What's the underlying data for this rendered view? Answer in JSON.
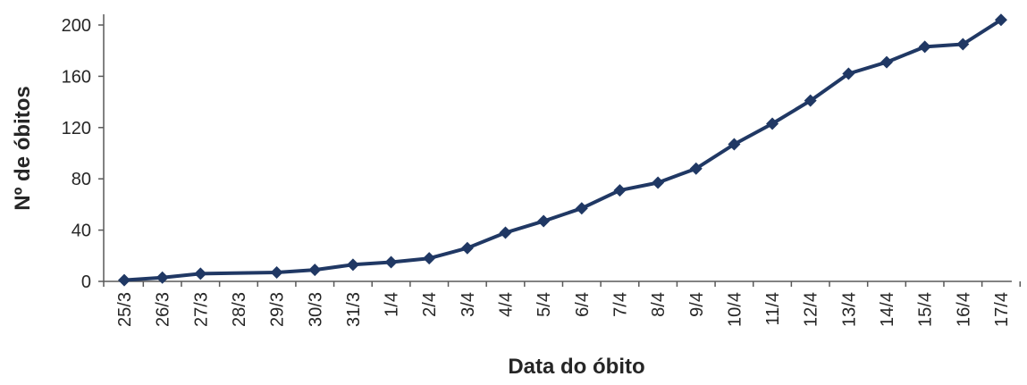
{
  "chart_data": {
    "type": "line",
    "title": "",
    "xlabel": "Data do óbito",
    "ylabel": "Nº de óbitos",
    "categories": [
      "25/3",
      "26/3",
      "27/3",
      "28/3",
      "29/3",
      "30/3",
      "31/3",
      "1/4",
      "2/4",
      "3/4",
      "4/4",
      "5/4",
      "6/4",
      "7/4",
      "8/4",
      "9/4",
      "10/4",
      "11/4",
      "12/4",
      "13/4",
      "14/4",
      "15/4",
      "16/4",
      "17/4"
    ],
    "series": [
      {
        "values": [
          1,
          3,
          6,
          null,
          7,
          9,
          13,
          15,
          18,
          26,
          38,
          47,
          57,
          71,
          77,
          88,
          107,
          123,
          141,
          162,
          171,
          183,
          185,
          204
        ],
        "color": "#203864"
      }
    ],
    "ylim": [
      0,
      200
    ],
    "yticks": [
      0,
      40,
      80,
      120,
      160,
      200
    ],
    "grid": false,
    "legend": "none"
  }
}
